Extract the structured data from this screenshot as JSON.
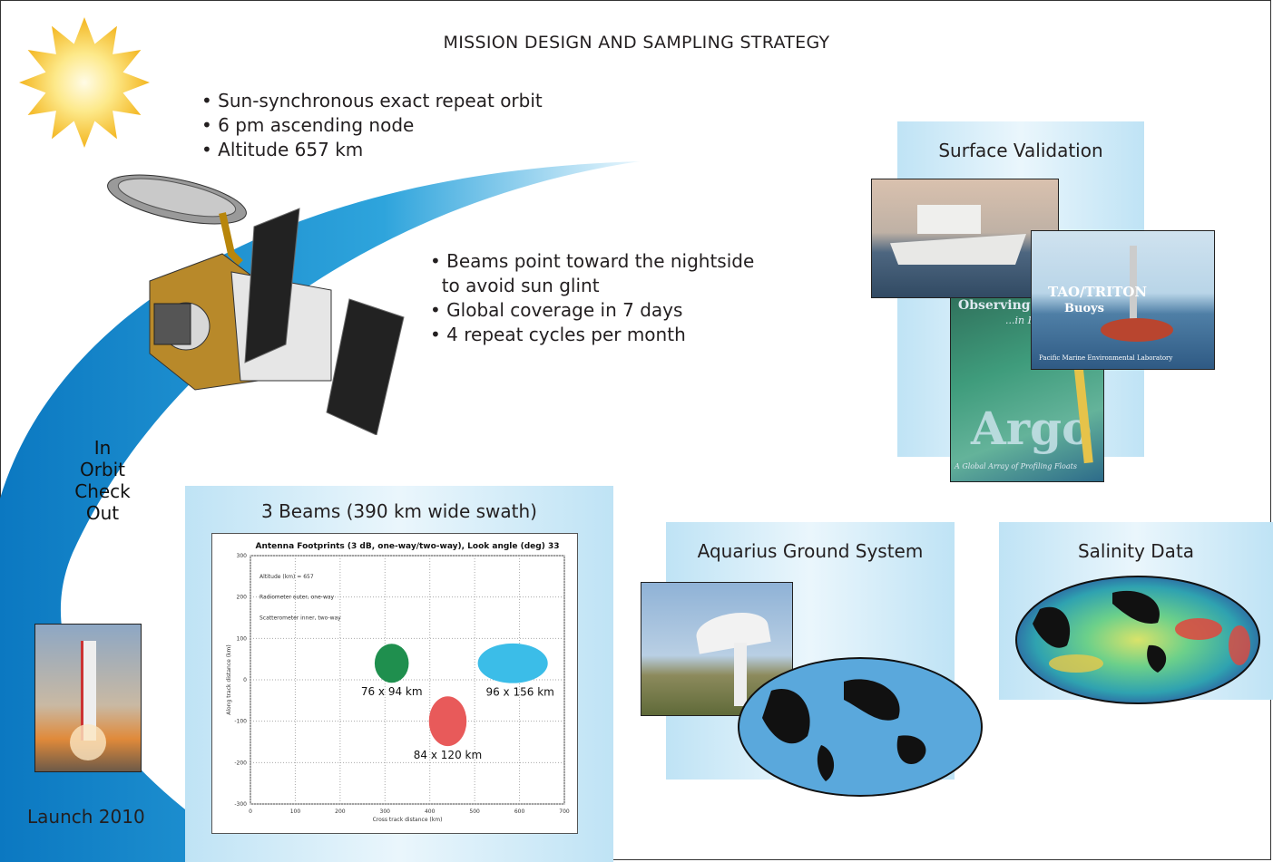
{
  "title": "MISSION DESIGN AND SAMPLING STRATEGY",
  "orbit_bullets": [
    "• Sun-synchronous exact repeat orbit",
    "• 6 pm ascending node",
    "• Altitude 657 km"
  ],
  "beam_bullets": [
    "• Beams point toward the nightside",
    "  to avoid sun glint",
    "• Global coverage in 7 days",
    "• 4 repeat cycles per month"
  ],
  "arc_label": [
    "In",
    "Orbit",
    "Check",
    "Out"
  ],
  "launch_label": "Launch 2010",
  "beams_panel": {
    "title": "3 Beams (390 km wide swath)",
    "plot_title": "Antenna Footprints (3 dB, one-way/two-way), Look angle (deg) 33",
    "notes": [
      "Altitude (km) = 657",
      "Radiometer outer, one-way",
      "Scatterometer inner, two-way"
    ],
    "xlabel": "Cross track distance (km)",
    "ylabel": "Along track distance (km)",
    "xticks": [
      "0",
      "100",
      "200",
      "300",
      "400",
      "500",
      "600",
      "700"
    ],
    "yticks": [
      "300",
      "200",
      "100",
      "0",
      "-100",
      "-200",
      "-300"
    ],
    "footprints": [
      {
        "label": "76 x 94 km",
        "x": 315,
        "y": 40,
        "w": 76,
        "h": 94,
        "color": "#1f8f4e"
      },
      {
        "label": "96 x 156 km",
        "x": 585,
        "y": 40,
        "w": 156,
        "h": 96,
        "color": "#3bbde8"
      },
      {
        "label": "84 x 120 km",
        "x": 440,
        "y": -100,
        "w": 84,
        "h": 120,
        "color": "#e85a5a"
      }
    ]
  },
  "surface_panel": {
    "title": "Surface Validation",
    "buoy_title": "TAO/TRITON",
    "buoy_sub": "Buoys",
    "buoy_caption": "Pacific Marine Environmental Laboratory",
    "argo_top": "Observing",
    "argo_top2": "...in R",
    "argo_big": "Argo",
    "argo_caption": "A Global Array of Profiling Floats"
  },
  "ground_panel": {
    "title": "Aquarius Ground System"
  },
  "salinity_panel": {
    "title": "Salinity Data"
  },
  "colors": {
    "arc": "#1a8fd0",
    "panel": "#bfe3f5",
    "sun": "#f5c63a"
  }
}
